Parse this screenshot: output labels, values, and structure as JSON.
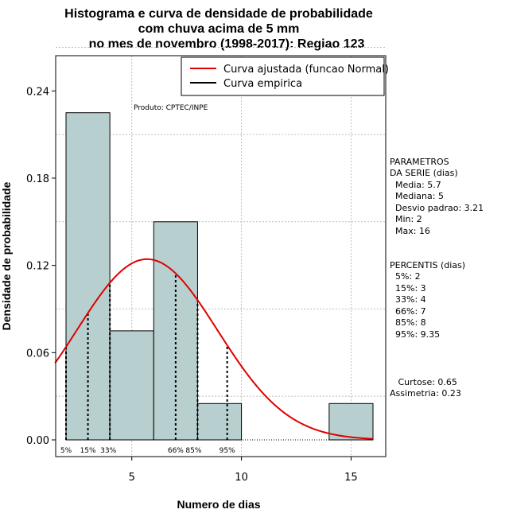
{
  "chart_data": {
    "type": "bar",
    "title_lines": [
      "Histograma e curva de densidade de probabilidade",
      "com chuva acima de 5 mm",
      "no mes de novembro (1998-2017): Regiao 123"
    ],
    "xlabel": "Numero de dias",
    "ylabel": "Densidade de probabilidade",
    "xlim": [
      1.5,
      17
    ],
    "ylim": [
      0,
      0.27
    ],
    "xticks": [
      5,
      10,
      15
    ],
    "yticks": [
      0.0,
      0.06,
      0.12,
      0.18,
      0.24
    ],
    "ytick_labels": [
      "0.00",
      "0.06",
      "0.12",
      "0.18",
      "0.24"
    ],
    "bins": [
      {
        "from": 2,
        "to": 4,
        "density": 0.225
      },
      {
        "from": 4,
        "to": 6,
        "density": 0.075
      },
      {
        "from": 6,
        "to": 8,
        "density": 0.15
      },
      {
        "from": 8,
        "to": 10,
        "density": 0.025
      },
      {
        "from": 10,
        "to": 12,
        "density": 0
      },
      {
        "from": 12,
        "to": 14,
        "density": 0
      },
      {
        "from": 14,
        "to": 16,
        "density": 0.025
      }
    ],
    "normal_fit": {
      "mean": 5.7,
      "sd": 3.21,
      "x_range": [
        1.5,
        16
      ]
    },
    "legend": [
      {
        "label": "Curva ajustada (funcao Normal)",
        "color": "#e00000"
      },
      {
        "label": "Curva empirica",
        "color": "#000000"
      }
    ],
    "annotation": "Produto: CPTEC/INPE",
    "percentile_lines": [
      {
        "label": "5%",
        "x": 2
      },
      {
        "label": "15%",
        "x": 3
      },
      {
        "label": "33%",
        "x": 4
      },
      {
        "label": "66%",
        "x": 7
      },
      {
        "label": "85%",
        "x": 8
      },
      {
        "label": "95%",
        "x": 9.35
      }
    ],
    "side_panel": {
      "params": [
        "PARAMETROS",
        "DA SERIE (dias)",
        "  Media: 5.7",
        "  Mediana: 5",
        "  Desvio padrao: 3.21",
        "  Min: 2",
        "  Max: 16"
      ],
      "percentis": [
        "PERCENTIS (dias)",
        "  5%: 2",
        "  15%: 3",
        "  33%: 4",
        "  66%: 7",
        "  85%: 8",
        "  95%: 9.35"
      ],
      "stats": [
        "   Curtose: 0.65",
        "Assimetria: 0.23"
      ]
    },
    "colors": {
      "bar_fill": "#b8cfcf",
      "bar_stroke": "#000000",
      "curve": "#e00000",
      "grid": "#bdbdbd"
    }
  }
}
